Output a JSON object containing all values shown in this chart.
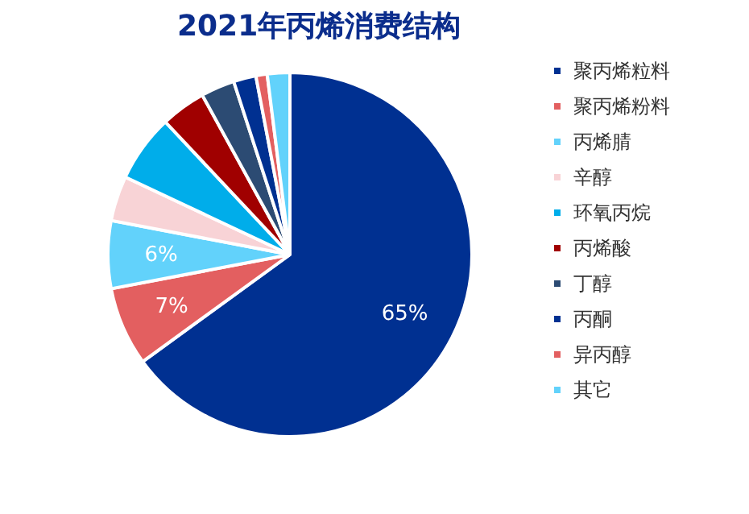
{
  "chart_data": {
    "type": "pie",
    "title": "2021年丙烯消费结构",
    "categories": [
      "聚丙烯粒料",
      "聚丙烯粉料",
      "丙烯腈",
      "辛醇",
      "环氧丙烷",
      "丙烯酸",
      "丁醇",
      "丙酮",
      "异丙醇",
      "其它"
    ],
    "values": [
      65,
      7,
      6,
      4,
      6,
      4,
      3,
      2,
      1,
      2
    ],
    "colors": [
      "#003091",
      "#e35f60",
      "#62d2fb",
      "#f8d3d6",
      "#00adea",
      "#a00000",
      "#2c4b73",
      "#003091",
      "#e35f60",
      "#62d2fb"
    ],
    "value_labels": [
      "65%",
      "7%",
      "6%",
      null,
      null,
      null,
      null,
      null,
      null,
      null
    ],
    "legend": "right"
  }
}
